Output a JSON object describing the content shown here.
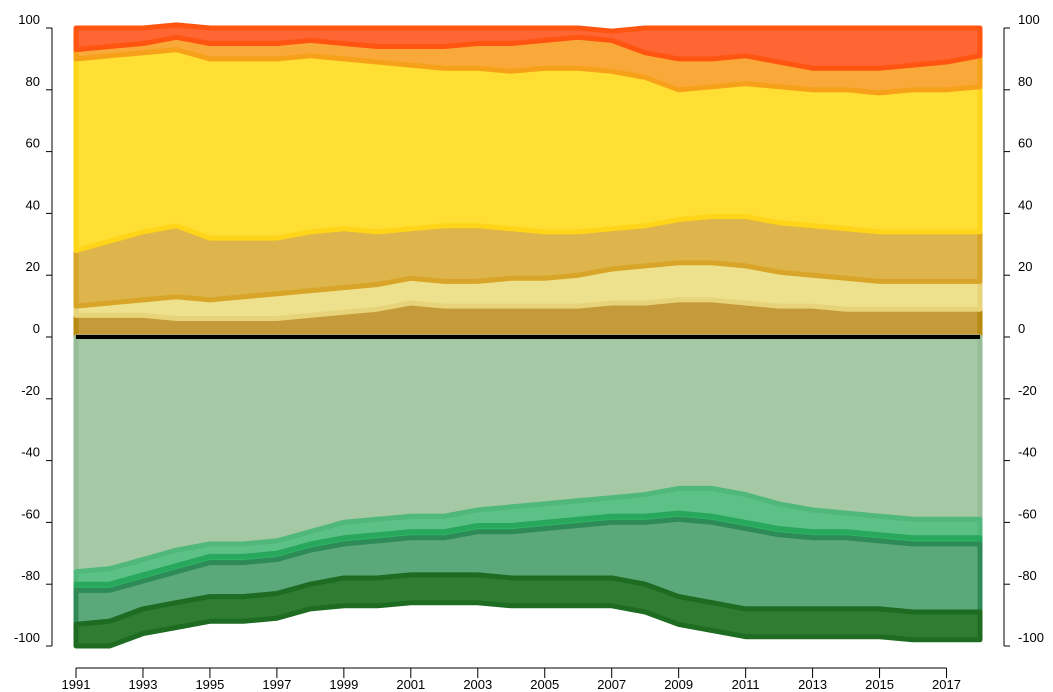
{
  "chart_data": {
    "type": "area",
    "x": [
      1991,
      1992,
      1993,
      1994,
      1995,
      1996,
      1997,
      1998,
      1999,
      2000,
      2001,
      2002,
      2003,
      2004,
      2005,
      2006,
      2007,
      2008,
      2009,
      2010,
      2011,
      2012,
      2013,
      2014,
      2015,
      2016,
      2017,
      2018
    ],
    "x_tick_labels": [
      "1991",
      "1993",
      "1995",
      "1997",
      "1999",
      "2001",
      "2003",
      "2005",
      "2007",
      "2009",
      "2011",
      "2013",
      "2015",
      "2017"
    ],
    "y_tick_labels": [
      "100",
      "80",
      "60",
      "40",
      "20",
      "0",
      "-20",
      "-40",
      "-60",
      "-80",
      "-100"
    ],
    "ylim": [
      -100,
      100
    ],
    "xlim": [
      1991,
      2018
    ],
    "zero_line": true,
    "grid": false,
    "series_positive": [
      {
        "color": "#c49a3a",
        "edge": "#b88a10",
        "values": [
          7,
          7,
          7,
          6,
          6,
          6,
          6,
          7,
          8,
          9,
          11,
          10,
          10,
          10,
          10,
          10,
          11,
          11,
          12,
          12,
          11,
          10,
          10,
          9,
          9,
          9,
          9,
          9
        ]
      },
      {
        "color": "#ede18d",
        "edge": "#e7d47a",
        "values": [
          3,
          4,
          5,
          7,
          6,
          7,
          8,
          8,
          8,
          8,
          8,
          8,
          8,
          9,
          9,
          10,
          11,
          12,
          12,
          12,
          12,
          11,
          10,
          10,
          9,
          9,
          9,
          9
        ]
      },
      {
        "color": "#deb44c",
        "edge": "#d9a528",
        "values": [
          18,
          20,
          22,
          23,
          20,
          19,
          18,
          19,
          19,
          17,
          16,
          18,
          18,
          16,
          15,
          14,
          13,
          13,
          14,
          15,
          16,
          16,
          16,
          16,
          16,
          16,
          16,
          16
        ]
      },
      {
        "color": "#ffdf33",
        "edge": "#ffd51a",
        "values": [
          62,
          60,
          58,
          57,
          58,
          58,
          58,
          57,
          55,
          55,
          53,
          51,
          51,
          51,
          53,
          53,
          51,
          48,
          42,
          42,
          43,
          44,
          44,
          45,
          45,
          46,
          46,
          47
        ]
      },
      {
        "color": "#f9a93a",
        "edge": "#f7a11a",
        "values": [
          3,
          3,
          3,
          4,
          5,
          5,
          5,
          5,
          5,
          5,
          6,
          7,
          8,
          9,
          9,
          10,
          10,
          8,
          10,
          9,
          9,
          8,
          7,
          7,
          8,
          8,
          9,
          10
        ]
      },
      {
        "color": "#ff6633",
        "edge": "#ff5511",
        "values": [
          7,
          6,
          5,
          4,
          5,
          5,
          5,
          4,
          5,
          6,
          6,
          6,
          5,
          5,
          4,
          3,
          3,
          8,
          10,
          10,
          9,
          11,
          13,
          13,
          13,
          12,
          11,
          9
        ]
      }
    ],
    "series_negative": [
      {
        "color": "#a4c9a4",
        "edge": "#98bc98",
        "values": [
          76,
          75,
          72,
          69,
          67,
          67,
          66,
          63,
          60,
          59,
          58,
          58,
          56,
          55,
          54,
          53,
          52,
          51,
          49,
          49,
          51,
          54,
          56,
          57,
          58,
          59,
          59,
          59
        ]
      },
      {
        "color": "#5cc186",
        "edge": "#4fb87a",
        "values": [
          4,
          5,
          5,
          5,
          4,
          4,
          4,
          4,
          5,
          5,
          5,
          5,
          5,
          6,
          6,
          6,
          6,
          7,
          8,
          9,
          9,
          8,
          7,
          6,
          6,
          6,
          6,
          6
        ]
      },
      {
        "color": "#2eb466",
        "edge": "#28a85c",
        "values": [
          2,
          2,
          2,
          2,
          2,
          2,
          2,
          2,
          2,
          2,
          2,
          2,
          2,
          2,
          2,
          2,
          2,
          2,
          2,
          2,
          2,
          2,
          2,
          2,
          2,
          2,
          2,
          2
        ]
      },
      {
        "color": "#5ba87a",
        "edge": "#2e8b57",
        "values": [
          11,
          10,
          9,
          10,
          11,
          11,
          11,
          11,
          11,
          12,
          12,
          12,
          14,
          15,
          16,
          17,
          18,
          20,
          25,
          26,
          26,
          24,
          23,
          23,
          22,
          22,
          22,
          22
        ]
      },
      {
        "color": "#2e7d32",
        "edge": "#1e6b22",
        "values": [
          7,
          8,
          8,
          8,
          8,
          8,
          8,
          8,
          9,
          9,
          9,
          9,
          9,
          9,
          9,
          9,
          9,
          9,
          9,
          9,
          9,
          9,
          9,
          9,
          9,
          9,
          9,
          9
        ]
      }
    ]
  }
}
